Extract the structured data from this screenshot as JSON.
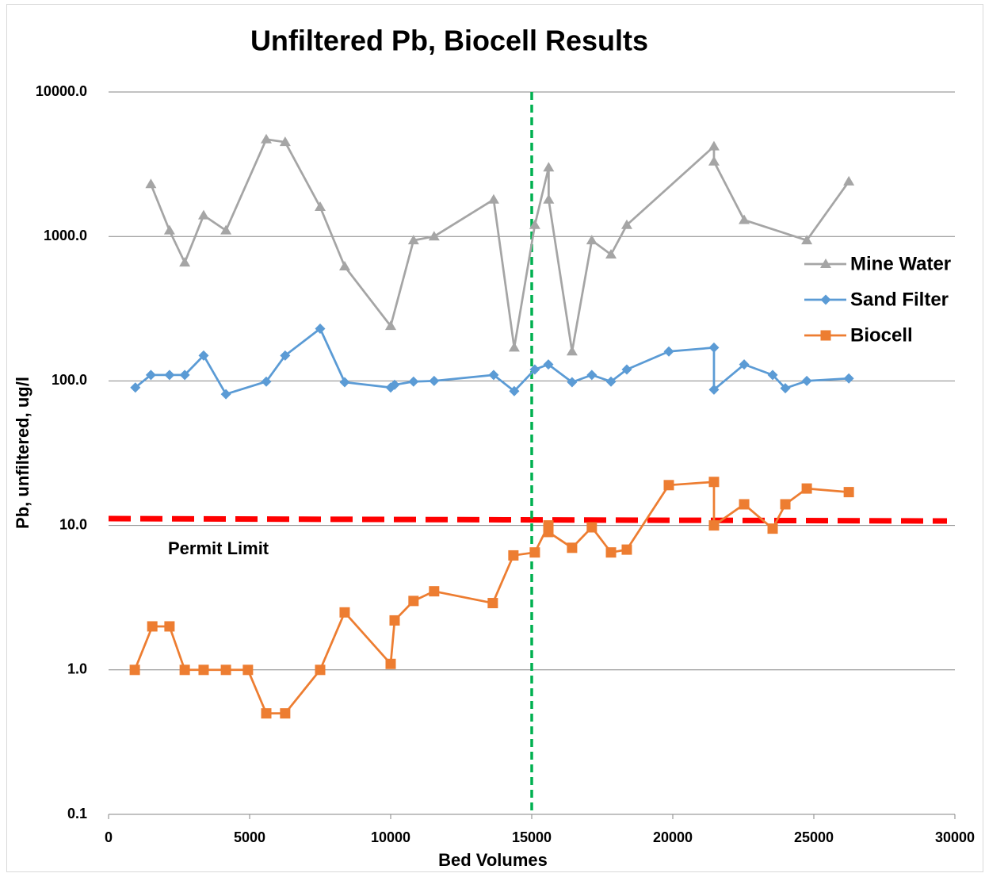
{
  "chart_data": {
    "type": "line",
    "title": "Unfiltered Pb, Biocell Results",
    "x_label": "Bed Volumes",
    "y_label": "Pb, unfiltered, ug/l",
    "log_y": true,
    "grid": true,
    "legend": "right",
    "xlim": [
      0,
      30000
    ],
    "xticks": [
      0,
      5000,
      10000,
      15000,
      20000,
      25000,
      30000
    ],
    "ylim": [
      0.1,
      10000
    ],
    "yticks": [
      {
        "value": 0.1,
        "label": "0.1"
      },
      {
        "value": 1,
        "label": "1.0"
      },
      {
        "value": 10,
        "label": "10.0"
      },
      {
        "value": 100,
        "label": "100.0"
      },
      {
        "value": 1000,
        "label": "1000.0"
      },
      {
        "value": 10000,
        "label": "10000.0"
      }
    ],
    "series": [
      {
        "name": "Mine Water",
        "color": "#a5a5a5",
        "marker": "triangle",
        "x": [
          1500,
          2160,
          2700,
          3370,
          4160,
          5590,
          6260,
          7500,
          8370,
          10000,
          10810,
          11540,
          13650,
          14380,
          15110,
          15600,
          15600,
          16430,
          17130,
          17810,
          18370,
          21460,
          21460,
          22530,
          24750,
          26240
        ],
        "values": [
          2300,
          1100,
          660,
          1400,
          1100,
          4700,
          4500,
          1600,
          620,
          240,
          940,
          1000,
          1800,
          170,
          1200,
          3000,
          1800,
          160,
          940,
          750,
          1200,
          4200,
          3300,
          1300,
          940,
          2400
        ]
      },
      {
        "name": "Sand Filter",
        "color": "#5b9bd5",
        "marker": "diamond",
        "x": [
          950,
          1500,
          2160,
          2700,
          3370,
          4160,
          5590,
          6260,
          7500,
          8370,
          10000,
          10140,
          10810,
          11540,
          13650,
          14380,
          15110,
          15590,
          16430,
          17130,
          17810,
          18370,
          19860,
          21460,
          21460,
          22530,
          23540,
          23990,
          24750,
          26240
        ],
        "values": [
          90,
          110,
          110,
          110,
          150,
          81,
          99,
          150,
          230,
          98,
          90,
          94,
          99,
          100,
          110,
          85,
          120,
          130,
          98,
          110,
          99,
          120,
          160,
          170,
          87,
          130,
          110,
          89,
          100,
          104
        ]
      },
      {
        "name": "Biocell",
        "color": "#ed7d31",
        "marker": "square",
        "x": [
          930,
          1550,
          2160,
          2700,
          3370,
          4160,
          4940,
          5590,
          6260,
          7500,
          8370,
          10000,
          10140,
          10810,
          11540,
          13620,
          14350,
          15110,
          15590,
          15590,
          16430,
          17130,
          17810,
          18370,
          19860,
          21460,
          21460,
          22530,
          23540,
          23990,
          24750,
          26240
        ],
        "values": [
          1,
          2,
          2,
          1,
          1,
          1,
          1,
          0.5,
          0.5,
          1,
          2.5,
          1.1,
          2.2,
          3,
          3.5,
          2.9,
          6.2,
          6.5,
          10,
          9,
          7,
          9.7,
          6.5,
          6.8,
          19,
          20,
          10,
          14,
          9.5,
          14,
          18,
          17
        ]
      }
    ],
    "permit_limit": 11,
    "permit_limit_label": "Permit Limit",
    "vertical_line_x": 15000
  }
}
